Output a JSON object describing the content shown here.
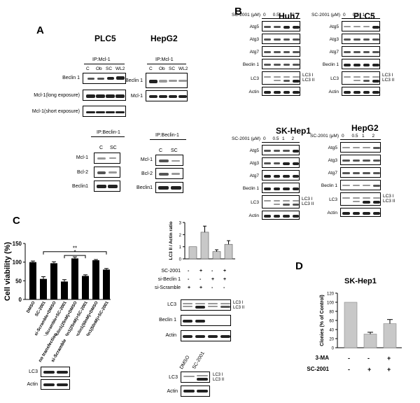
{
  "panels": {
    "A": "A",
    "B": "B",
    "C": "C",
    "D": "D"
  },
  "A": {
    "plc5_title": "PLC5",
    "hepg2_title": "HepG2",
    "ip_mcl1": "IP:Mcl-1",
    "ip_beclin1": "IP:Beclin-1",
    "lanes4": [
      "C",
      "Ob",
      "SC",
      "WL2"
    ],
    "lanes2": [
      "C",
      "SC"
    ],
    "rows_top_plc5": [
      "Beclin 1",
      "Mcl-1(long exposure)",
      "Mcl-1(short exposure)"
    ],
    "rows_top_hepg2": [
      "Beclin 1",
      "Mcl-1"
    ],
    "rows_bottom": [
      "Mcl-1",
      "Bcl-2",
      "Beclin1"
    ]
  },
  "B": {
    "huh7": "Huh7",
    "plc5": "PLC5",
    "skhep1": "SK-Hep1",
    "hepg2": "HepG2",
    "dose_label": "SC-2001 (μM)",
    "doses": [
      "0",
      "0.5",
      "1",
      "2"
    ],
    "rows": [
      "Atg5",
      "Atg3",
      "Atg7",
      "Beclin 1",
      "LC3",
      "Actin"
    ],
    "lc3_forms": [
      "LC3 I",
      "LC3 II"
    ]
  },
  "C": {
    "bar_chart": {
      "ylabel": "Cell viability (%)",
      "yticks": [
        "0",
        "50",
        "100",
        "150"
      ],
      "categories": [
        "DMSO",
        "SC-2001",
        "si-Scramble+DMSO",
        "si-Scramble+SC-2001",
        "si-Beclin1(25nM)+DMSO",
        "si-Beclin1(25nM)+SC-2001",
        "si-Beclin1(50nM)+DMSO",
        "si-Beclin1(50nM)+SC-2001"
      ],
      "sig1": "**",
      "sig2": "*"
    },
    "ratio_chart": {
      "ylabel": "LC3 II / Actin ratio",
      "yticks": [
        "0",
        "1",
        "2",
        "3"
      ]
    },
    "treat_rows": [
      "SC-2001",
      "si-Beclin 1",
      "si-Scramble"
    ],
    "treat_signs": [
      [
        "-",
        "+",
        "-",
        "+"
      ],
      [
        "-",
        "-",
        "+",
        "+"
      ],
      [
        "+",
        "+",
        "-",
        "-"
      ]
    ],
    "blot_rows": [
      "LC3",
      "Beclin 1",
      "Actin"
    ],
    "lc3_forms": [
      "LC3 I",
      "LC3 II"
    ],
    "bottom_left_lanes": [
      "no transfection",
      "si-Scramble"
    ],
    "bottom_left_rows": [
      "LC3",
      "Actin"
    ],
    "bottom_right_lanes": [
      "DMSO",
      "SC-2001"
    ],
    "bottom_right_rows": [
      "LC3",
      "Actin"
    ]
  },
  "D": {
    "title": "SK-Hep1",
    "ylabel": "Clonies (% of Control)",
    "yticks": [
      "0",
      "20",
      "40",
      "60",
      "80",
      "100",
      "120"
    ],
    "rows": [
      "3-MA",
      "SC-2001"
    ],
    "signs": [
      [
        "-",
        "-",
        "+"
      ],
      [
        "-",
        "+",
        "+"
      ]
    ]
  },
  "chart_data": [
    {
      "type": "bar",
      "ylabel": "Cell viability (%)",
      "categories": [
        "DMSO",
        "SC-2001",
        "si-Scramble+DMSO",
        "si-Scramble+SC-2001",
        "si-Beclin1(25nM)+DMSO",
        "si-Beclin1(25nM)+SC-2001",
        "si-Beclin1(50nM)+DMSO",
        "si-Beclin1(50nM)+SC-2001"
      ],
      "values": [
        100,
        55,
        97,
        48,
        110,
        63,
        105,
        80
      ],
      "errors": [
        3,
        6,
        4,
        5,
        4,
        3,
        2,
        3
      ],
      "ylim": [
        0,
        150
      ],
      "color": "#000000"
    },
    {
      "type": "bar",
      "ylabel": "LC3 II / Actin ratio",
      "categories": [
        "1",
        "2",
        "3",
        "4"
      ],
      "values": [
        1.0,
        2.2,
        0.6,
        1.2
      ],
      "errors": [
        0,
        0.5,
        0.15,
        0.3
      ],
      "ylim": [
        0,
        3
      ],
      "color": "#c8c8c8"
    },
    {
      "type": "bar",
      "title": "SK-Hep1",
      "ylabel": "Clonies (% of Control)",
      "categories": [
        "1",
        "2",
        "3"
      ],
      "values": [
        100,
        30,
        53
      ],
      "errors": [
        0,
        4,
        9
      ],
      "ylim": [
        0,
        120
      ],
      "color": "#c8c8c8"
    }
  ]
}
